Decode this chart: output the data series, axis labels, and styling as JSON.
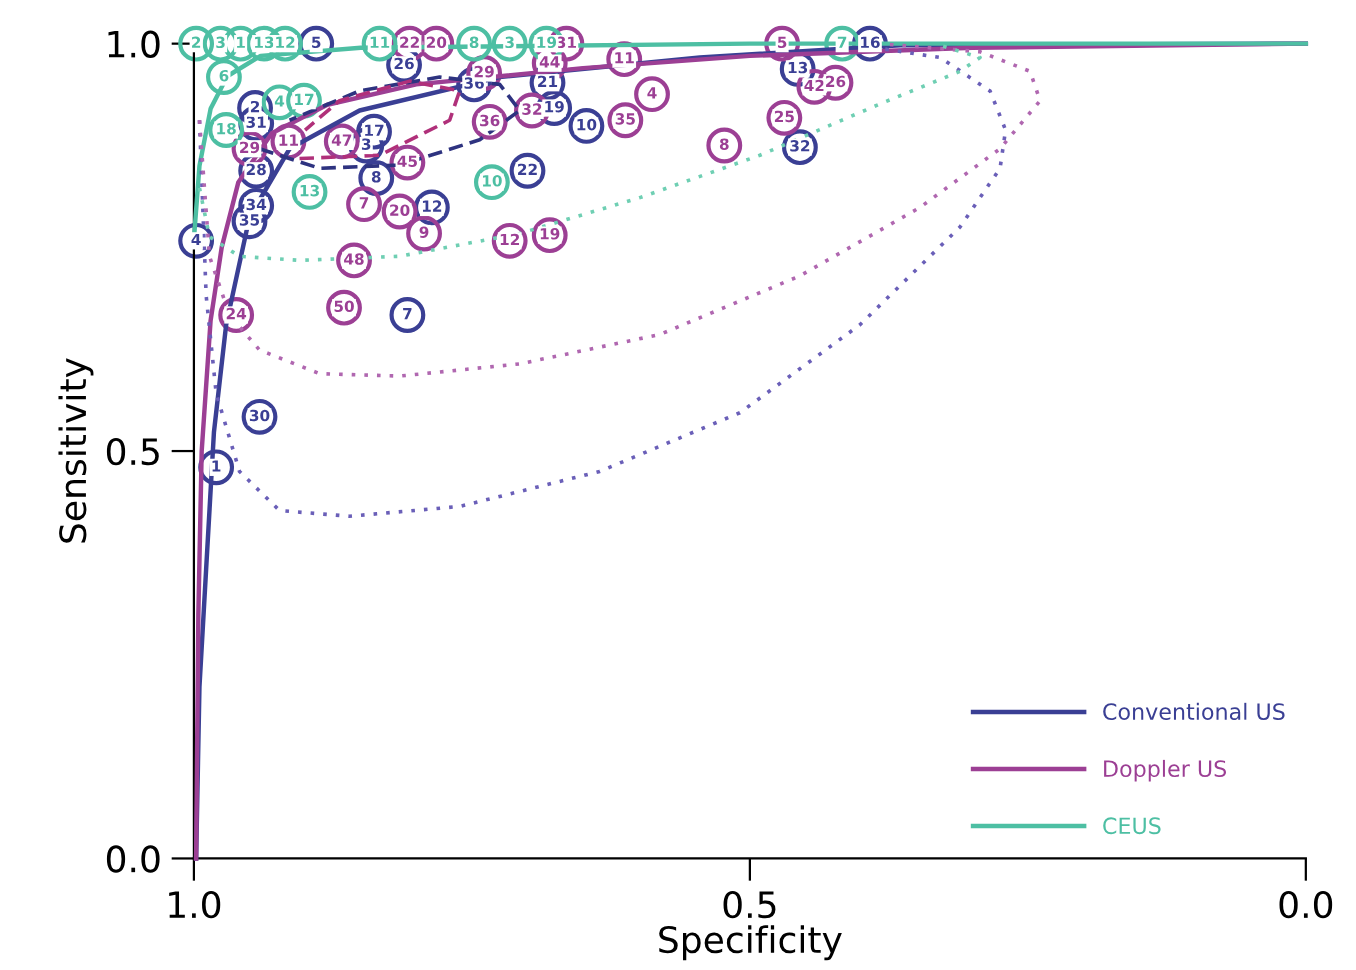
{
  "chart_data": {
    "type": "line",
    "xlabel": "Specificity",
    "ylabel": "Sensitivity",
    "xlim": [
      1.0,
      0.0
    ],
    "xticks": [
      {
        "value": 1.0,
        "label": "1.0"
      },
      {
        "value": 0.5,
        "label": "0.5"
      },
      {
        "value": 0.0,
        "label": "0.0"
      }
    ],
    "ylim": [
      0.0,
      1.0
    ],
    "yticks": [
      {
        "value": 0.0,
        "label": "0.0"
      },
      {
        "value": 0.5,
        "label": "0.5"
      },
      {
        "value": 1.0,
        "label": "1.0"
      }
    ],
    "grid": false,
    "legend": "bottom right",
    "marker": "none",
    "series": [
      {
        "name": "Conventional US",
        "line_style": "solid",
        "color": "#3a3f94",
        "x": [
          0.998,
          0.995,
          0.989,
          0.982,
          0.971,
          0.95,
          0.914,
          0.851,
          0.725,
          0.545,
          0.365,
          0.0
        ],
        "values": [
          0.0,
          0.211,
          0.355,
          0.523,
          0.655,
          0.787,
          0.871,
          0.918,
          0.959,
          0.983,
          0.998,
          1.0
        ]
      },
      {
        "name": "Doppler US",
        "line_style": "solid",
        "color": "#9c3f94",
        "x": [
          0.998,
          0.996,
          0.993,
          0.985,
          0.975,
          0.96,
          0.93,
          0.88,
          0.8,
          0.65,
          0.5,
          0.3,
          0.0
        ],
        "values": [
          0.0,
          0.3,
          0.5,
          0.66,
          0.75,
          0.83,
          0.89,
          0.925,
          0.95,
          0.97,
          0.985,
          0.995,
          1.0
        ]
      },
      {
        "name": "CEUS",
        "line_style": "solid",
        "color": "#4dbfa3",
        "x": [
          1.0,
          0.995,
          0.985,
          0.97,
          0.94,
          0.85,
          0.5,
          0.0
        ],
        "values": [
          0.76,
          0.85,
          0.92,
          0.96,
          0.985,
          0.995,
          1.0,
          1.0
        ]
      },
      {
        "line_style": "dotted",
        "color": "#6a5fb8",
        "x": [
          0.995,
          0.989,
          0.98,
          0.959,
          0.923,
          0.86,
          0.761,
          0.635,
          0.509,
          0.401,
          0.311,
          0.275,
          0.27,
          0.284,
          0.329,
          0.401
        ],
        "values": [
          0.906,
          0.691,
          0.571,
          0.475,
          0.427,
          0.42,
          0.432,
          0.475,
          0.547,
          0.655,
          0.775,
          0.847,
          0.894,
          0.942,
          0.983,
          0.998
        ]
      },
      {
        "line_style": "dotted",
        "color": "#b067b0",
        "x": [
          0.995,
          0.986,
          0.968,
          0.941,
          0.887,
          0.815,
          0.707,
          0.581,
          0.455,
          0.347,
          0.275,
          0.239,
          0.248,
          0.293,
          0.383
        ],
        "values": [
          0.906,
          0.739,
          0.667,
          0.624,
          0.595,
          0.592,
          0.607,
          0.643,
          0.715,
          0.799,
          0.871,
          0.93,
          0.966,
          0.99,
          1.0
        ]
      },
      {
        "line_style": "dotted",
        "color": "#6fcfb3",
        "x": [
          0.995,
          0.986,
          0.959,
          0.905,
          0.815,
          0.707,
          0.599,
          0.491,
          0.383,
          0.311,
          0.293,
          0.329
        ],
        "values": [
          0.823,
          0.763,
          0.739,
          0.734,
          0.739,
          0.767,
          0.811,
          0.863,
          0.926,
          0.966,
          0.983,
          0.998
        ]
      },
      {
        "line_style": "dashed",
        "color": "#2e3380",
        "x": [
          0.941,
          0.887,
          0.815,
          0.743,
          0.707,
          0.725,
          0.779,
          0.851,
          0.914
        ],
        "values": [
          0.871,
          0.847,
          0.851,
          0.882,
          0.918,
          0.95,
          0.959,
          0.942,
          0.906
        ]
      },
      {
        "line_style": "dashed",
        "color": "#b0307a",
        "x": [
          0.905,
          0.833,
          0.77,
          0.761,
          0.806,
          0.869,
          0.9
        ],
        "values": [
          0.859,
          0.863,
          0.906,
          0.942,
          0.954,
          0.93,
          0.894
        ]
      },
      {
        "type": "scatter",
        "marker": "circle",
        "color": "#3a3f94",
        "x": [
          0.89,
          0.392,
          0.457,
          0.455,
          0.647,
          0.682,
          0.676,
          0.7,
          0.786,
          0.836,
          0.838,
          0.845,
          0.944,
          0.944,
          0.944,
          0.95,
          0.998,
          0.808,
          0.941,
          0.98,
          0.811,
          0.748,
          0.945
        ],
        "values": [
          1.0,
          1.0,
          0.969,
          0.873,
          0.899,
          0.952,
          0.921,
          0.844,
          0.799,
          0.835,
          0.892,
          0.875,
          0.902,
          0.844,
          0.801,
          0.782,
          0.758,
          0.667,
          0.542,
          0.48,
          0.974,
          0.95,
          0.921
        ]
      },
      {
        "type": "scatter",
        "marker": "circle",
        "color": "#9c3f94",
        "x": [
          0.806,
          0.782,
          0.665,
          0.68,
          0.613,
          0.739,
          0.734,
          0.696,
          0.612,
          0.588,
          0.471,
          0.442,
          0.423,
          0.469,
          0.523,
          0.808,
          0.867,
          0.915,
          0.95,
          0.847,
          0.815,
          0.793,
          0.716,
          0.68,
          0.856,
          0.865,
          0.962
        ],
        "values": [
          1.0,
          1.0,
          1.0,
          0.976,
          0.981,
          0.964,
          0.904,
          0.918,
          0.906,
          0.938,
          1.0,
          0.947,
          0.952,
          0.909,
          0.875,
          0.854,
          0.88,
          0.88,
          0.871,
          0.803,
          0.794,
          0.767,
          0.758,
          0.765,
          0.734,
          0.676,
          0.667
        ]
      },
      {
        "type": "scatter",
        "marker": "circle",
        "color": "#4dbfa3",
        "x": [
          0.998,
          0.976,
          0.958,
          0.937,
          0.918,
          0.833,
          0.748,
          0.716,
          0.683,
          0.417,
          0.973,
          0.923,
          0.901,
          0.971,
          0.896,
          0.732
        ],
        "values": [
          1.0,
          1.0,
          1.0,
          1.0,
          1.0,
          1.0,
          1.0,
          1.0,
          1.0,
          1.0,
          0.959,
          0.928,
          0.93,
          0.894,
          0.818,
          0.83
        ]
      }
    ],
    "annotations": [
      {
        "text": "5",
        "x": 0.89,
        "y": 1.0
      },
      {
        "text": "16",
        "x": 0.392,
        "y": 1.0
      },
      {
        "text": "13",
        "x": 0.457,
        "y": 0.969
      },
      {
        "text": "32",
        "x": 0.455,
        "y": 0.873
      },
      {
        "text": "10",
        "x": 0.647,
        "y": 0.899
      },
      {
        "text": "21",
        "x": 0.682,
        "y": 0.952
      },
      {
        "text": "19",
        "x": 0.676,
        "y": 0.921
      },
      {
        "text": "22",
        "x": 0.7,
        "y": 0.844
      },
      {
        "text": "12",
        "x": 0.786,
        "y": 0.799
      },
      {
        "text": "8",
        "x": 0.836,
        "y": 0.835
      },
      {
        "text": "17",
        "x": 0.838,
        "y": 0.892
      },
      {
        "text": "3",
        "x": 0.845,
        "y": 0.875
      },
      {
        "text": "31",
        "x": 0.944,
        "y": 0.902
      },
      {
        "text": "28",
        "x": 0.944,
        "y": 0.844
      },
      {
        "text": "34",
        "x": 0.944,
        "y": 0.801
      },
      {
        "text": "35",
        "x": 0.95,
        "y": 0.782
      },
      {
        "text": "4",
        "x": 0.998,
        "y": 0.758
      },
      {
        "text": "7",
        "x": 0.808,
        "y": 0.667
      },
      {
        "text": "30",
        "x": 0.941,
        "y": 0.542
      },
      {
        "text": "1",
        "x": 0.98,
        "y": 0.48
      },
      {
        "text": "26",
        "x": 0.811,
        "y": 0.974
      },
      {
        "text": "36",
        "x": 0.748,
        "y": 0.95
      },
      {
        "text": "2",
        "x": 0.945,
        "y": 0.921
      },
      {
        "text": "22",
        "x": 0.806,
        "y": 1.0
      },
      {
        "text": "20",
        "x": 0.782,
        "y": 1.0
      },
      {
        "text": "31",
        "x": 0.665,
        "y": 1.0
      },
      {
        "text": "44",
        "x": 0.68,
        "y": 0.976
      },
      {
        "text": "11",
        "x": 0.613,
        "y": 0.981
      },
      {
        "text": "29",
        "x": 0.739,
        "y": 0.964
      },
      {
        "text": "36",
        "x": 0.734,
        "y": 0.904
      },
      {
        "text": "32",
        "x": 0.696,
        "y": 0.918
      },
      {
        "text": "35",
        "x": 0.612,
        "y": 0.906
      },
      {
        "text": "4",
        "x": 0.588,
        "y": 0.938
      },
      {
        "text": "5",
        "x": 0.471,
        "y": 1.0
      },
      {
        "text": "42",
        "x": 0.442,
        "y": 0.947
      },
      {
        "text": "26",
        "x": 0.423,
        "y": 0.952
      },
      {
        "text": "25",
        "x": 0.469,
        "y": 0.909
      },
      {
        "text": "8",
        "x": 0.523,
        "y": 0.875
      },
      {
        "text": "45",
        "x": 0.808,
        "y": 0.854
      },
      {
        "text": "47",
        "x": 0.867,
        "y": 0.88
      },
      {
        "text": "11",
        "x": 0.915,
        "y": 0.88
      },
      {
        "text": "29",
        "x": 0.95,
        "y": 0.871
      },
      {
        "text": "7",
        "x": 0.847,
        "y": 0.803
      },
      {
        "text": "20",
        "x": 0.815,
        "y": 0.794
      },
      {
        "text": "9",
        "x": 0.793,
        "y": 0.767
      },
      {
        "text": "12",
        "x": 0.716,
        "y": 0.758
      },
      {
        "text": "19",
        "x": 0.68,
        "y": 0.765
      },
      {
        "text": "48",
        "x": 0.856,
        "y": 0.734
      },
      {
        "text": "50",
        "x": 0.865,
        "y": 0.676
      },
      {
        "text": "24",
        "x": 0.962,
        "y": 0.667
      },
      {
        "text": "2",
        "x": 0.998,
        "y": 1.0
      },
      {
        "text": "3",
        "x": 0.976,
        "y": 1.0
      },
      {
        "text": "1",
        "x": 0.958,
        "y": 1.0
      },
      {
        "text": "13",
        "x": 0.937,
        "y": 1.0
      },
      {
        "text": "12",
        "x": 0.918,
        "y": 1.0
      },
      {
        "text": "11",
        "x": 0.833,
        "y": 1.0
      },
      {
        "text": "8",
        "x": 0.748,
        "y": 1.0
      },
      {
        "text": "3",
        "x": 0.716,
        "y": 1.0
      },
      {
        "text": "19",
        "x": 0.683,
        "y": 1.0
      },
      {
        "text": "7",
        "x": 0.417,
        "y": 1.0
      },
      {
        "text": "6",
        "x": 0.973,
        "y": 0.959
      },
      {
        "text": "4",
        "x": 0.923,
        "y": 0.928
      },
      {
        "text": "17",
        "x": 0.901,
        "y": 0.93
      },
      {
        "text": "18",
        "x": 0.971,
        "y": 0.894
      },
      {
        "text": "13",
        "x": 0.896,
        "y": 0.818
      },
      {
        "text": "10",
        "x": 0.732,
        "y": 0.83
      }
    ]
  }
}
